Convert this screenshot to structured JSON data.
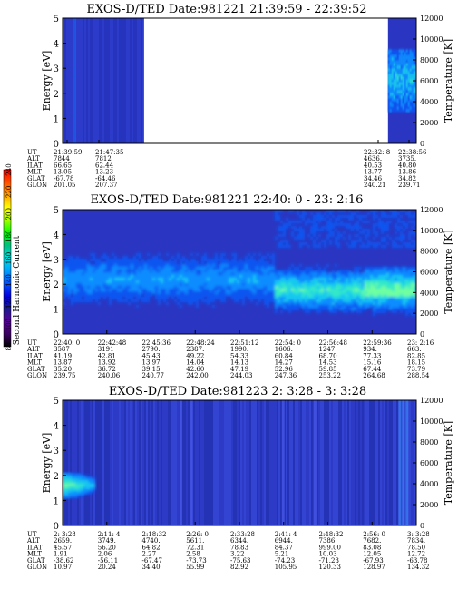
{
  "colors": {
    "plasma_bg": "#2a36c2",
    "colorbar": [
      "#000000",
      "#3a0060",
      "#5a009a",
      "#1a1a8c",
      "#0000e0",
      "#0050ff",
      "#00a0ff",
      "#00e0e0",
      "#00c080",
      "#00ff00",
      "#a0ff00",
      "#ffff00",
      "#ffa000",
      "#ff5000",
      "#ff0000"
    ]
  },
  "colorbar": {
    "label": "Second Harmonic Current",
    "ticks": [
      "80",
      "100",
      "120",
      "140",
      "160",
      "180",
      "200",
      "220",
      "240"
    ]
  },
  "chart_data": [
    {
      "type": "heatmap",
      "title": "EXOS-D/TED   Date:981221  21:39:59 - 22:39:52",
      "ylabel": "Energy [eV]",
      "ylabel_right": "Temperature [K]",
      "ylim": [
        0,
        5
      ],
      "yticks": [
        "0",
        "1",
        "2",
        "3",
        "4",
        "5"
      ],
      "ylim_right": [
        0,
        12000
      ],
      "yticks_right": [
        "0",
        "2000",
        "4000",
        "6000",
        "8000",
        "10000",
        "12000"
      ],
      "data_gaps": [
        [
          0.23,
          0.92
        ]
      ],
      "ephemeris_labels": [
        "UT",
        "ALT",
        "ILAT",
        "MLT",
        "GLAT",
        "GLON"
      ],
      "ephemeris": [
        {
          "UT": "21:39:59",
          "ALT": "7844",
          "ILAT": "66.65",
          "MLT": "13.05",
          "GLAT": "-67.78",
          "GLON": "201.05"
        },
        {
          "UT": "21:47:35",
          "ALT": "7812",
          "ILAT": "62.44",
          "MLT": "13.23",
          "GLAT": "-64.46",
          "GLON": "207.37"
        },
        {
          "UT": "22:32: 8",
          "ALT": "4636.",
          "ILAT": "40.53",
          "MLT": "13.77",
          "GLAT": "34.46",
          "GLON": "240.21"
        },
        {
          "UT": "22:38:56",
          "ALT": "3735.",
          "ILAT": "40.80",
          "MLT": "13.86",
          "GLAT": "34.82",
          "GLON": "239.71"
        }
      ]
    },
    {
      "type": "heatmap",
      "title": "EXOS-D/TED   Date:981221  22:40: 0 - 23: 2:16",
      "ylabel": "Energy [eV]",
      "ylabel_right": "Temperature [K]",
      "ylim": [
        0,
        5
      ],
      "yticks": [
        "0",
        "1",
        "2",
        "3",
        "4",
        "5"
      ],
      "ylim_right": [
        0,
        12000
      ],
      "yticks_right": [
        "0",
        "2000",
        "4000",
        "6000",
        "8000",
        "10000",
        "12000"
      ],
      "ephemeris_labels": [
        "UT",
        "ALT",
        "ILAT",
        "MLT",
        "GLAT",
        "GLON"
      ],
      "ephemeris": [
        {
          "UT": "22:40: 0",
          "ALT": "3587",
          "ILAT": "41.19",
          "MLT": "13.87",
          "GLAT": "35.20",
          "GLON": "239.75"
        },
        {
          "UT": "22:42:48",
          "ALT": "3191",
          "ILAT": "42.81",
          "MLT": "13.92",
          "GLAT": "36.72",
          "GLON": "240.06"
        },
        {
          "UT": "22:45:36",
          "ALT": "2790.",
          "ILAT": "45.43",
          "MLT": "13.97",
          "GLAT": "39.15",
          "GLON": "240.77"
        },
        {
          "UT": "22:48:24",
          "ALT": "2387.",
          "ILAT": "49.22",
          "MLT": "14.04",
          "GLAT": "42.60",
          "GLON": "242.00"
        },
        {
          "UT": "22:51:12",
          "ALT": "1990.",
          "ILAT": "54.33",
          "MLT": "14.13",
          "GLAT": "47.19",
          "GLON": "244.03"
        },
        {
          "UT": "22:54: 0",
          "ALT": "1606.",
          "ILAT": "60.84",
          "MLT": "14.27",
          "GLAT": "52.96",
          "GLON": "247.36"
        },
        {
          "UT": "22:56:48",
          "ALT": "1247.",
          "ILAT": "68.70",
          "MLT": "14.53",
          "GLAT": "59.85",
          "GLON": "253.22"
        },
        {
          "UT": "22:59:36",
          "ALT": "934.",
          "ILAT": "77.33",
          "MLT": "15.16",
          "GLAT": "67.44",
          "GLON": "264.68"
        },
        {
          "UT": "23: 2:16",
          "ALT": "663.",
          "ILAT": "82.85",
          "MLT": "18.15",
          "GLAT": "73.79",
          "GLON": "288.54"
        }
      ]
    },
    {
      "type": "heatmap",
      "title": "EXOS-D/TED   Date:981223  2: 3:28 - 3: 3:28",
      "ylabel": "Energy [eV]",
      "ylabel_right": "Temperature [K]",
      "ylim": [
        0,
        5
      ],
      "yticks": [
        "0",
        "1",
        "2",
        "3",
        "4",
        "5"
      ],
      "ylim_right": [
        0,
        12000
      ],
      "yticks_right": [
        "0",
        "2000",
        "4000",
        "6000",
        "8000",
        "10000",
        "12000"
      ],
      "ephemeris_labels": [
        "UT",
        "ALT",
        "ILAT",
        "MLT",
        "GLAT",
        "GLON"
      ],
      "ephemeris": [
        {
          "UT": "2: 3:28",
          "ALT": "2659.",
          "ILAT": "45.57",
          "MLT": "1.91",
          "GLAT": "-38.62",
          "GLON": "10.97"
        },
        {
          "UT": "2:11: 4",
          "ALT": "3749.",
          "ILAT": "56.20",
          "MLT": "2.06",
          "GLAT": "-56.11",
          "GLON": "20.24"
        },
        {
          "UT": "2:18:32",
          "ALT": "4740.",
          "ILAT": "64.82",
          "MLT": "2.27",
          "GLAT": "-67.47",
          "GLON": "34.40"
        },
        {
          "UT": "2:26: 0",
          "ALT": "5611.",
          "ILAT": "72.31",
          "MLT": "2.58",
          "GLAT": "-73.73",
          "GLON": "55.99"
        },
        {
          "UT": "2:33:28",
          "ALT": "6344.",
          "ILAT": "78.83",
          "MLT": "3.22",
          "GLAT": "-75.63",
          "GLON": "82.92"
        },
        {
          "UT": "2:41: 4",
          "ALT": "6944.",
          "ILAT": "84.37",
          "MLT": "5.21",
          "GLAT": "-74.23",
          "GLON": "105.95"
        },
        {
          "UT": "2:48:32",
          "ALT": "7386.",
          "ILAT": "999.00",
          "MLT": "10.03",
          "GLAT": "-71.23",
          "GLON": "120.33"
        },
        {
          "UT": "2:56: 0",
          "ALT": "7682.",
          "ILAT": "83.08",
          "MLT": "12.05",
          "GLAT": "-67.93",
          "GLON": "128.97"
        },
        {
          "UT": "3: 3:28",
          "ALT": "7834.",
          "ILAT": "78.50",
          "MLT": "12.72",
          "GLAT": "-63.78",
          "GLON": "134.32"
        }
      ]
    }
  ]
}
